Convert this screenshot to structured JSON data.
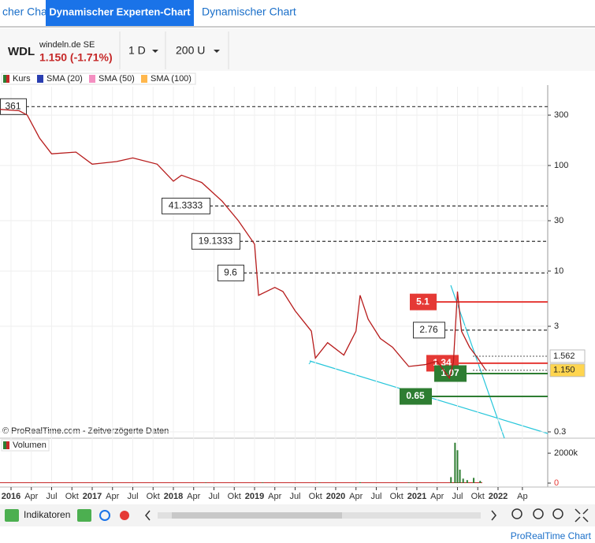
{
  "tabs": [
    "cher Chart",
    "Dynamischer Experten-Chart",
    "Dynamischer Chart"
  ],
  "header": {
    "ticker": "WDL",
    "company": "windeln.de SE",
    "quote": "1.150 (-1.71%)",
    "interval": "1 D",
    "units": "200 U"
  },
  "legend": [
    "Kurs",
    "SMA (20)",
    "SMA (50)",
    "SMA (100)"
  ],
  "footer": {
    "indicators": "Indikatoren",
    "brand": "ProRealTime Chart"
  },
  "chart_data": {
    "type": "line",
    "log_scale": true,
    "source": "© ProRealTime.com - Zeitverzögerte Daten",
    "xlim": [
      2015.864,
      2022.612
    ],
    "ylim": [
      0.266,
      486
    ],
    "yticks": [
      300,
      100,
      30,
      10,
      3,
      0.3
    ],
    "xticks": [
      {
        "value": 2016,
        "label": "2016"
      },
      {
        "value": 2016.25,
        "label": "Apr"
      },
      {
        "value": 2016.5,
        "label": "Jul"
      },
      {
        "value": 2016.75,
        "label": "Okt"
      },
      {
        "value": 2017,
        "label": "2017"
      },
      {
        "value": 2017.25,
        "label": "Apr"
      },
      {
        "value": 2017.5,
        "label": "Jul"
      },
      {
        "value": 2017.75,
        "label": "Okt"
      },
      {
        "value": 2018,
        "label": "2018"
      },
      {
        "value": 2018.25,
        "label": "Apr"
      },
      {
        "value": 2018.5,
        "label": "Jul"
      },
      {
        "value": 2018.75,
        "label": "Okt"
      },
      {
        "value": 2019,
        "label": "2019"
      },
      {
        "value": 2019.25,
        "label": "Apr"
      },
      {
        "value": 2019.5,
        "label": "Jul"
      },
      {
        "value": 2019.75,
        "label": "Okt"
      },
      {
        "value": 2020,
        "label": "2020"
      },
      {
        "value": 2020.25,
        "label": "Apr"
      },
      {
        "value": 2020.5,
        "label": "Jul"
      },
      {
        "value": 2020.75,
        "label": "Okt"
      },
      {
        "value": 2021,
        "label": "2021"
      },
      {
        "value": 2021.25,
        "label": "Apr"
      },
      {
        "value": 2021.5,
        "label": "Jul"
      },
      {
        "value": 2021.75,
        "label": "Okt"
      },
      {
        "value": 2022,
        "label": "2022"
      },
      {
        "value": 2022.3,
        "label": "Ap"
      }
    ],
    "series": [
      {
        "name": "Kurs",
        "color": "#b71c1c",
        "x": [
          2015.864,
          2016.1,
          2016.2,
          2016.35,
          2016.5,
          2016.8,
          2017.0,
          2017.3,
          2017.5,
          2017.8,
          2018.0,
          2018.1,
          2018.35,
          2018.6,
          2018.8,
          2019.0,
          2019.05,
          2019.25,
          2019.35,
          2019.5,
          2019.7,
          2019.75,
          2019.9,
          2020.1,
          2020.25,
          2020.3,
          2020.4,
          2020.55,
          2020.7,
          2020.9,
          2021.1,
          2021.25,
          2021.4,
          2021.45,
          2021.5,
          2021.55,
          2021.65,
          2021.75,
          2021.85
        ],
        "values": [
          340,
          330,
          300,
          182,
          129,
          134,
          103,
          109,
          118,
          103,
          71,
          81,
          69,
          46,
          30,
          18,
          5.9,
          7,
          6.4,
          4.2,
          2.7,
          1.5,
          2.1,
          1.6,
          2.7,
          5.9,
          3.5,
          2.3,
          1.9,
          1.25,
          1.3,
          1.4,
          0.97,
          1.36,
          6.4,
          2.7,
          1.9,
          1.5,
          1.15
        ]
      }
    ],
    "levels": [
      {
        "value": 361,
        "color": "#333333",
        "style": "dashed"
      },
      {
        "value": 41.3333,
        "color": "#333333",
        "style": "dashed"
      },
      {
        "value": 19.1333,
        "color": "#333333",
        "style": "dashed"
      },
      {
        "value": 9.6,
        "color": "#333333",
        "style": "dashed"
      },
      {
        "value": 5.1,
        "color": "#e53935",
        "style": "solid"
      },
      {
        "value": 2.76,
        "color": "#333333",
        "style": "dashed"
      },
      {
        "value": 1.34,
        "color": "#e53935",
        "style": "solid"
      },
      {
        "value": 1.07,
        "color": "#2e7d32",
        "style": "solid"
      },
      {
        "value": 0.65,
        "color": "#2e7d32",
        "style": "solid"
      }
    ],
    "price_labels": [
      {
        "value": 1.562,
        "color": "#ffffff"
      },
      {
        "value": 1.15,
        "label": "1.150",
        "color": "#ffd54f"
      }
    ],
    "volume": {
      "name": "Volumen",
      "color": "#2e7d32",
      "ylim": [
        0,
        2900000
      ],
      "yticks": [
        {
          "value": 2000000,
          "label": "2000k"
        },
        0
      ],
      "x": [
        2016.3,
        2017.2,
        2018.4,
        2019.1,
        2019.8,
        2020.3,
        2020.9,
        2021.42,
        2021.47,
        2021.5,
        2021.53,
        2021.57,
        2021.62,
        2021.7,
        2021.78
      ],
      "values": [
        30000,
        25000,
        30000,
        40000,
        35000,
        60000,
        40000,
        400000,
        2700000,
        2200000,
        900000,
        300000,
        200000,
        350000,
        150000
      ]
    }
  }
}
